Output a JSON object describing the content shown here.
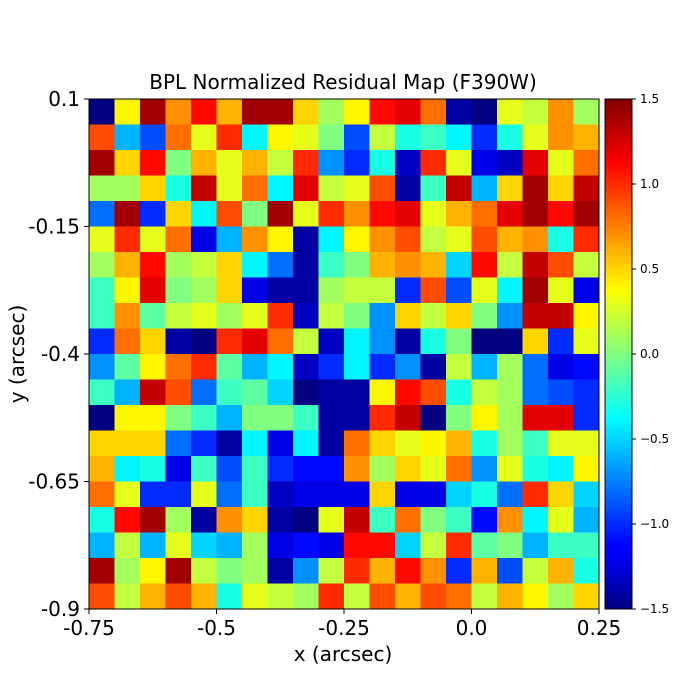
{
  "chart_data": {
    "type": "heatmap",
    "title": "BPL Normalized Residual Map (F390W)",
    "xlabel": "x (arcsec)",
    "ylabel": "y (arcsec)",
    "xlim": [
      -0.75,
      0.25
    ],
    "ylim": [
      -0.9,
      0.1
    ],
    "xticks": [
      "-0.75",
      "-0.5",
      "-0.25",
      "0.0",
      "0.25"
    ],
    "yticks": [
      "0.1",
      "-0.15",
      "-0.4",
      "-0.65",
      "-0.9"
    ],
    "colorbar": {
      "range": [
        -1.5,
        1.5
      ],
      "ticks": [
        "1.5",
        "1.0",
        "0.5",
        "0.0",
        "−0.5",
        "−1.0",
        "−1.5"
      ],
      "colormap": "jet"
    },
    "grid_size": [
      20,
      20
    ],
    "values": [
      [
        -1.5,
        0.4,
        1.4,
        0.7,
        1.1,
        0.6,
        1.4,
        1.4,
        0.5,
        0.1,
        0.4,
        1.1,
        1.2,
        0.8,
        -1.4,
        -1.5,
        0.3,
        0.2,
        0.7,
        0.1
      ],
      [
        0.9,
        -0.6,
        -0.9,
        0.8,
        0.3,
        1.0,
        -0.4,
        0.4,
        0.3,
        0.0,
        -0.9,
        0.2,
        -0.3,
        -0.2,
        -0.4,
        -1.0,
        -0.3,
        0.3,
        0.7,
        0.6
      ],
      [
        1.4,
        0.5,
        1.1,
        0.0,
        0.6,
        0.3,
        0.6,
        0.2,
        1.0,
        -0.7,
        -1.0,
        -0.3,
        -1.3,
        1.0,
        0.3,
        -1.2,
        -1.3,
        1.2,
        0.3,
        0.8
      ],
      [
        0.1,
        0.1,
        0.5,
        -0.3,
        1.3,
        0.3,
        0.8,
        -0.4,
        1.2,
        0.2,
        0.3,
        0.9,
        -1.4,
        -0.2,
        1.3,
        -0.6,
        0.5,
        1.4,
        0.5,
        1.3
      ],
      [
        -0.8,
        1.4,
        -1.0,
        0.5,
        -0.4,
        0.9,
        0.0,
        1.4,
        0.3,
        1.0,
        0.7,
        1.1,
        1.2,
        0.3,
        0.6,
        0.8,
        1.2,
        1.4,
        1.1,
        1.4
      ],
      [
        0.3,
        1.0,
        0.3,
        0.8,
        -1.2,
        -0.6,
        0.7,
        0.4,
        -1.4,
        -0.4,
        0.4,
        0.7,
        0.9,
        0.2,
        0.3,
        0.9,
        0.6,
        0.7,
        -0.3,
        1.0
      ],
      [
        0.1,
        0.6,
        1.1,
        0.1,
        0.2,
        0.5,
        -0.4,
        -0.8,
        -1.4,
        -0.2,
        0.0,
        0.6,
        0.7,
        0.6,
        -0.5,
        1.1,
        0.2,
        1.3,
        0.9,
        0.2
      ],
      [
        -0.2,
        0.4,
        1.2,
        0.0,
        0.1,
        0.5,
        -1.2,
        -1.4,
        -1.4,
        0.1,
        0.2,
        0.2,
        -1.0,
        0.9,
        -0.9,
        0.3,
        -0.4,
        1.4,
        0.3,
        -1.2
      ],
      [
        -0.2,
        0.7,
        -0.1,
        0.2,
        0.3,
        0.1,
        0.3,
        1.0,
        -1.3,
        0.2,
        0.0,
        -0.7,
        0.5,
        0.2,
        0.5,
        0.0,
        -0.7,
        1.3,
        1.3,
        0.4
      ],
      [
        -1.0,
        0.8,
        0.5,
        -1.4,
        -1.5,
        1.0,
        1.2,
        0.8,
        0.2,
        -1.3,
        -0.4,
        -0.7,
        -1.4,
        -0.3,
        0.0,
        -1.5,
        -1.5,
        0.5,
        -1.0,
        0.3
      ],
      [
        -0.7,
        -0.1,
        0.4,
        0.8,
        1.0,
        -0.1,
        -0.6,
        -0.4,
        -1.3,
        -1.0,
        -0.4,
        -1.0,
        -0.7,
        -1.4,
        0.2,
        -0.6,
        0.1,
        -0.8,
        -1.2,
        -1.1
      ],
      [
        -0.2,
        -0.6,
        1.3,
        0.9,
        -0.8,
        -0.2,
        -0.1,
        -0.5,
        -1.5,
        -1.4,
        -1.4,
        0.4,
        1.1,
        0.9,
        -0.3,
        0.2,
        0.1,
        -0.8,
        -0.9,
        -1.0
      ],
      [
        -1.5,
        0.4,
        0.4,
        0.0,
        -0.2,
        -0.6,
        0.0,
        0.0,
        -0.2,
        -1.4,
        -1.4,
        1.0,
        1.3,
        -1.5,
        0.0,
        0.4,
        0.1,
        1.2,
        1.2,
        -1.0
      ],
      [
        0.5,
        0.5,
        0.5,
        -0.8,
        -1.0,
        -1.4,
        -0.4,
        -1.2,
        -0.4,
        -1.4,
        0.8,
        0.5,
        0.3,
        0.4,
        0.6,
        -0.3,
        0.1,
        -0.2,
        0.3,
        0.3
      ],
      [
        0.6,
        -0.4,
        -0.3,
        -1.2,
        -0.2,
        -0.9,
        -0.2,
        -1.0,
        -1.1,
        -1.1,
        0.7,
        0.1,
        0.5,
        0.3,
        0.8,
        -0.7,
        0.3,
        -0.3,
        -0.4,
        0.4
      ],
      [
        0.8,
        0.3,
        -1.0,
        -1.0,
        0.3,
        -0.8,
        -0.2,
        -1.3,
        -1.2,
        -1.2,
        -1.2,
        0.5,
        -1.2,
        -1.2,
        -0.5,
        -0.3,
        -0.8,
        1.0,
        0.5,
        -0.5
      ],
      [
        -0.3,
        1.1,
        1.4,
        0.1,
        -1.4,
        0.7,
        0.5,
        -1.4,
        -1.5,
        0.3,
        1.3,
        -0.2,
        0.8,
        0.0,
        -0.2,
        -1.1,
        0.7,
        -0.4,
        0.3,
        -0.6
      ],
      [
        -0.6,
        0.2,
        -0.6,
        0.3,
        -0.5,
        -0.6,
        0.1,
        -1.2,
        -1.1,
        -1.2,
        1.1,
        1.1,
        -0.5,
        0.2,
        1.0,
        -0.1,
        0.0,
        -0.6,
        -0.2,
        -0.2
      ],
      [
        1.4,
        0.1,
        0.4,
        1.4,
        0.2,
        0.0,
        0.1,
        -1.4,
        -0.7,
        0.2,
        1.0,
        0.6,
        1.1,
        0.7,
        -1.0,
        0.6,
        -0.9,
        0.2,
        0.6,
        -0.3
      ],
      [
        0.9,
        0.2,
        0.6,
        0.9,
        0.6,
        -0.3,
        0.3,
        0.2,
        0.1,
        1.0,
        0.2,
        0.9,
        0.6,
        0.9,
        0.8,
        0.2,
        0.6,
        0.4,
        0.1,
        0.5
      ]
    ]
  }
}
